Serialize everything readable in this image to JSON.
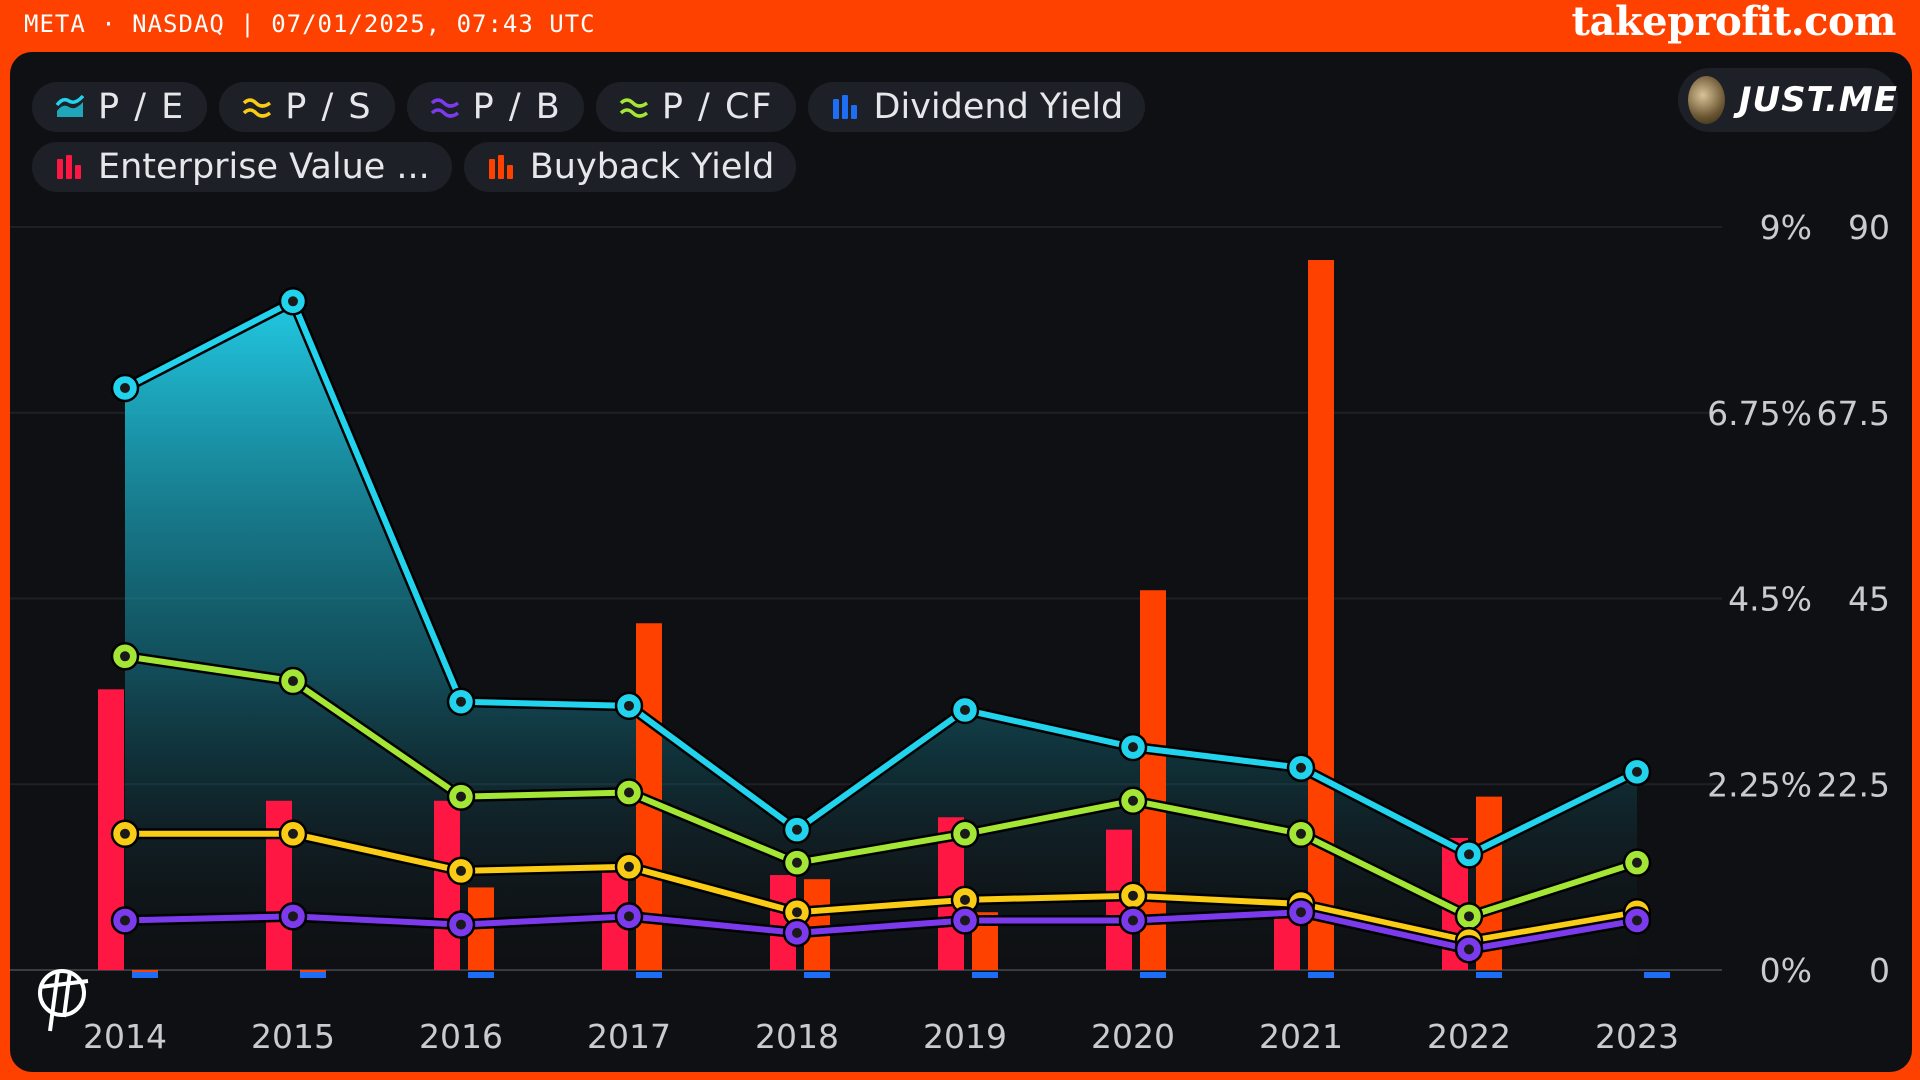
{
  "header": {
    "ticker": "META · NASDAQ | 07/01/2025, 07:43 UTC",
    "brand": "takeprofit.com"
  },
  "legend": [
    {
      "label": "P / E",
      "color": "#22d3ee",
      "icon": "area-icon"
    },
    {
      "label": "P / S",
      "color": "#facc15",
      "icon": "wave-icon"
    },
    {
      "label": "P / B",
      "color": "#7c3aed",
      "icon": "wave-icon"
    },
    {
      "label": "P / CF",
      "color": "#a3e635",
      "icon": "wave-icon"
    },
    {
      "label": "Dividend Yield",
      "color": "#1d6ef5",
      "icon": "bars-icon"
    },
    {
      "label": "Enterprise Value ...",
      "color": "#ff1744",
      "icon": "bars-icon"
    },
    {
      "label": "Buyback Yield",
      "color": "#ff4100",
      "icon": "bars-icon"
    }
  ],
  "user": {
    "name": "JUST.ME"
  },
  "chart_data": {
    "type": "line",
    "categories": [
      "2014",
      "2015",
      "2016",
      "2017",
      "2018",
      "2019",
      "2020",
      "2021",
      "2022",
      "2023"
    ],
    "y_left_ticks": [
      "9%",
      "6.75%",
      "4.5%",
      "2.25%",
      "0%"
    ],
    "y_right_ticks": [
      "90",
      "67.5",
      "45",
      "22.5",
      "0"
    ],
    "y_left_range": [
      0,
      9
    ],
    "y_right_range": [
      0,
      90
    ],
    "grid": true,
    "series": [
      {
        "name": "P / E",
        "type": "area",
        "axis": "right",
        "color": "#22d3ee",
        "values": [
          70.5,
          81,
          32.5,
          32,
          17,
          31.5,
          27,
          24.5,
          14,
          24
        ]
      },
      {
        "name": "P / CF",
        "type": "line",
        "axis": "right",
        "color": "#a3e635",
        "values": [
          38,
          35,
          21,
          21.5,
          13,
          16.5,
          20.5,
          16.5,
          6.5,
          13
        ]
      },
      {
        "name": "P / S",
        "type": "line",
        "axis": "right",
        "color": "#facc15",
        "values": [
          16.5,
          16.5,
          12,
          12.5,
          7,
          8.5,
          9,
          8,
          3.5,
          7
        ]
      },
      {
        "name": "P / B",
        "type": "line",
        "axis": "right",
        "color": "#7c3aed",
        "values": [
          6,
          6.5,
          5.5,
          6.5,
          4.5,
          6,
          6,
          7,
          2.5,
          6
        ]
      },
      {
        "name": "Enterprise Value ...",
        "type": "bar",
        "axis": "right",
        "color": "#ff1744",
        "values": [
          34,
          20.5,
          20.5,
          12,
          11.5,
          18.5,
          17,
          8,
          16,
          0
        ]
      },
      {
        "name": "Buyback Yield",
        "type": "bar",
        "axis": "left",
        "color": "#ff4100",
        "values": [
          -0.1,
          -0.1,
          1,
          4.2,
          1.1,
          0.7,
          4.6,
          8.6,
          2.1,
          0
        ]
      },
      {
        "name": "Dividend Yield",
        "type": "bar",
        "axis": "left",
        "color": "#1d6ef5",
        "values": [
          0,
          0,
          0,
          0,
          0,
          0,
          0,
          0,
          0,
          0.05
        ]
      }
    ]
  }
}
